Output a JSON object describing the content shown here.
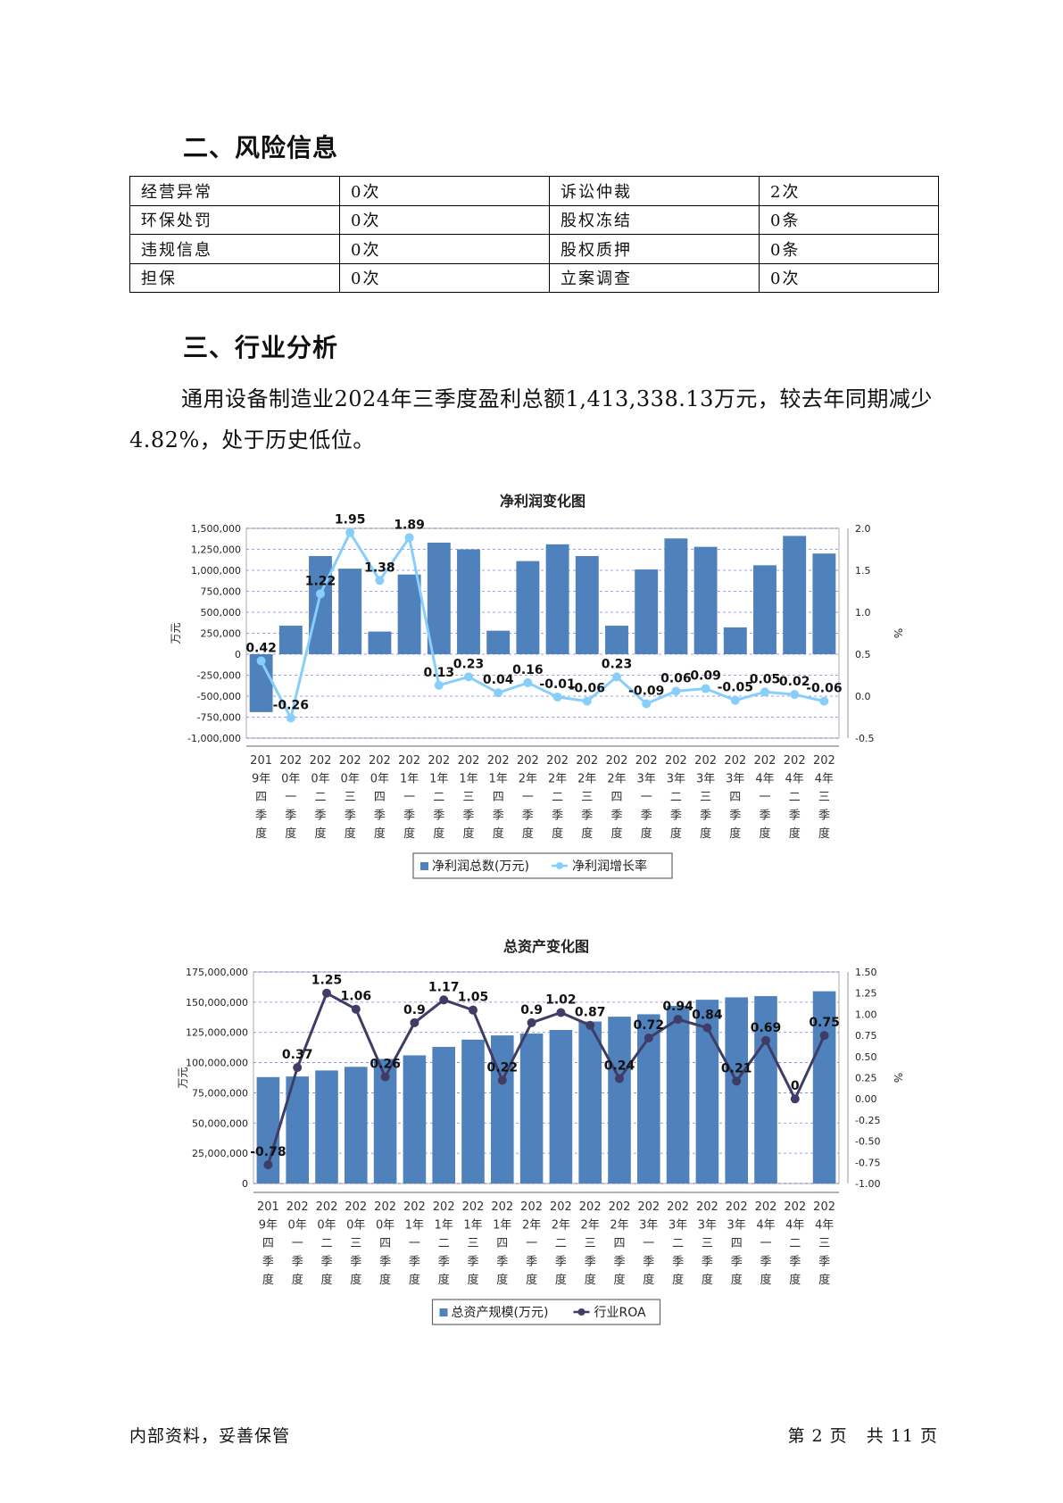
{
  "sections": {
    "risk_heading": "二、风险信息",
    "industry_heading": "三、行业分析"
  },
  "risk_table": [
    [
      "经营异常",
      "0次",
      "诉讼仲裁",
      "2次"
    ],
    [
      "环保处罚",
      "0次",
      "股权冻结",
      "0条"
    ],
    [
      "违规信息",
      "0次",
      "股权质押",
      "0条"
    ],
    [
      "担保",
      "0次",
      "立案调查",
      "0次"
    ]
  ],
  "industry_paragraph": "通用设备制造业2024年三季度盈利总额1,413,338.13万元，较去年同期减少4.82%，处于历史低位。",
  "chart_data": [
    {
      "type": "bar+line",
      "title": "净利润变化图",
      "categories": [
        "2019年四季度",
        "2020年一季度",
        "2020年二季度",
        "2020年三季度",
        "2020年四季度",
        "2021年一季度",
        "2021年二季度",
        "2021年三季度",
        "2021年四季度",
        "2022年一季度",
        "2022年二季度",
        "2022年三季度",
        "2022年四季度",
        "2023年一季度",
        "2023年二季度",
        "2023年三季度",
        "2023年四季度",
        "2024年一季度",
        "2024年二季度",
        "2024年三季度"
      ],
      "ylabel_left": "万元",
      "ylabel_right": "%",
      "left_ticks": [
        "1,500,000",
        "1,250,000",
        "1,000,000",
        "750,000",
        "500,000",
        "250,000",
        "0",
        "-250,000",
        "-500,000",
        "-750,000",
        "-1,000,000"
      ],
      "right_ticks": [
        "2.0",
        "1.5",
        "1.0",
        "0.5",
        "0.0",
        "-0.5"
      ],
      "ylim_left": [
        -1000000,
        1500000
      ],
      "ylim_right": [
        -0.5,
        2.0
      ],
      "series": [
        {
          "name": "净利润总数(万元)",
          "kind": "bar",
          "color": "#4f81bd",
          "values": [
            -690000,
            340000,
            1170000,
            1020000,
            270000,
            950000,
            1330000,
            1250000,
            280000,
            1110000,
            1310000,
            1170000,
            340000,
            1010000,
            1380000,
            1280000,
            320000,
            1060000,
            1410000,
            1200000
          ]
        },
        {
          "name": "净利润增长率",
          "kind": "line",
          "color": "#87cefa",
          "values": [
            0.42,
            -0.26,
            1.22,
            1.95,
            1.38,
            1.89,
            0.13,
            0.23,
            0.04,
            0.16,
            -0.01,
            -0.06,
            0.23,
            -0.09,
            0.06,
            0.09,
            -0.05,
            0.05,
            0.02,
            -0.06
          ],
          "labels": [
            "0.42",
            "-0.26",
            "1.22",
            "1.95",
            "1.38",
            "1.89",
            "0.13",
            "0.23",
            "0.04",
            "0.16",
            "-0.01",
            "-0.06",
            "0.23",
            "-0.09",
            "0.06",
            "0.09",
            "-0.05",
            "0.05",
            "0.02",
            "-0.06"
          ]
        }
      ],
      "grid": true,
      "legend": "bottom"
    },
    {
      "type": "bar+line",
      "title": "总资产变化图",
      "categories": [
        "2019年四季度",
        "2020年一季度",
        "2020年二季度",
        "2020年三季度",
        "2020年四季度",
        "2021年一季度",
        "2021年二季度",
        "2021年三季度",
        "2021年四季度",
        "2022年一季度",
        "2022年二季度",
        "2022年三季度",
        "2022年四季度",
        "2023年一季度",
        "2023年二季度",
        "2023年三季度",
        "2023年四季度",
        "2024年一季度",
        "2024年二季度",
        "2024年三季度"
      ],
      "ylabel_left": "万元",
      "ylabel_right": "%",
      "left_ticks": [
        "175,000,000",
        "150,000,000",
        "125,000,000",
        "100,000,000",
        "75,000,000",
        "50,000,000",
        "25,000,000",
        "0"
      ],
      "right_ticks": [
        "1.50",
        "1.25",
        "1.00",
        "0.75",
        "0.50",
        "0.25",
        "0.00",
        "-0.25",
        "-0.50",
        "-0.75",
        "-1.00"
      ],
      "ylim_left": [
        0,
        175000000
      ],
      "ylim_right": [
        -1.0,
        1.5
      ],
      "series": [
        {
          "name": "总资产规模(万元)",
          "kind": "bar",
          "color": "#4f81bd",
          "values": [
            88000000,
            88500000,
            93500000,
            96500000,
            103000000,
            106000000,
            113000000,
            119000000,
            122500000,
            124000000,
            127000000,
            134000000,
            138000000,
            140000000,
            147000000,
            152000000,
            154000000,
            155000000,
            null,
            159000000
          ]
        },
        {
          "name": "行业ROA",
          "kind": "line",
          "color": "#3f3d66",
          "values": [
            -0.78,
            0.37,
            1.25,
            1.06,
            0.26,
            0.9,
            1.17,
            1.05,
            0.22,
            0.9,
            1.02,
            0.87,
            0.24,
            0.72,
            0.94,
            0.84,
            0.21,
            0.69,
            0,
            0.75
          ],
          "labels": [
            "-0.78",
            "0.37",
            "1.25",
            "1.06",
            "0.26",
            "0.9",
            "1.17",
            "1.05",
            "0.22",
            "0.9",
            "1.02",
            "0.87",
            "0.24",
            "0.72",
            "0.94",
            "0.84",
            "0.21",
            "0.69",
            "0",
            "0.75"
          ]
        }
      ],
      "grid": true,
      "legend": "bottom"
    }
  ],
  "footer": {
    "left": "内部资料，妥善保管",
    "right": "第 2 页   共 11 页"
  }
}
